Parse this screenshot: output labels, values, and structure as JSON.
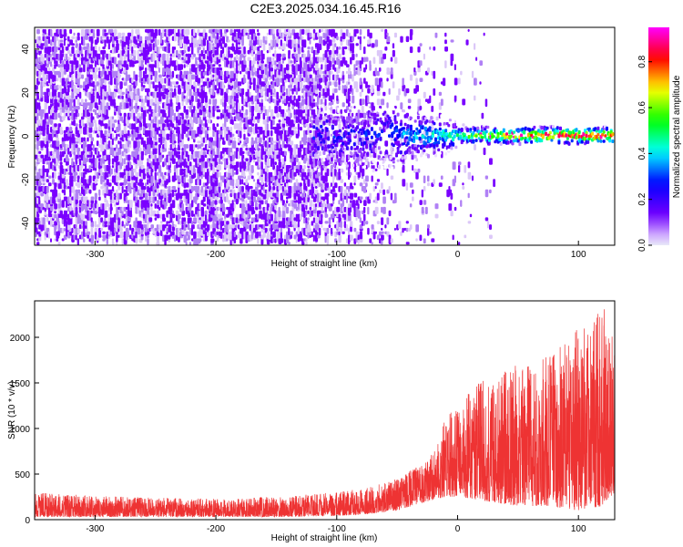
{
  "title": "C2E3.2025.034.16.45.R16",
  "chart_data": [
    {
      "type": "heatmap",
      "title": "C2E3.2025.034.16.45.R16",
      "xlabel": "Height of straight line (km)",
      "ylabel": "Frequency (Hz)",
      "xlim": [
        -350,
        130
      ],
      "ylim": [
        -50,
        50
      ],
      "xticks": [
        -300,
        -200,
        -100,
        0,
        100
      ],
      "yticks": [
        -40,
        -20,
        0,
        20,
        40
      ],
      "colorbar": {
        "label": "Normalized spectral amplitude",
        "range": [
          0.0,
          0.95
        ],
        "ticks": [
          0.0,
          0.2,
          0.4,
          0.6,
          0.8
        ],
        "colormap": [
          "#ffffff",
          "#7000ff",
          "#0000ff",
          "#00ffff",
          "#00ff00",
          "#ffff00",
          "#ff0000",
          "#ff00ff"
        ]
      },
      "description_points": [
        {
          "x": -350,
          "noise_amplitude": 0.12
        },
        {
          "x": -120,
          "noise_amplitude": 0.1
        },
        {
          "x": -100,
          "signal_amplitude": 0.25
        },
        {
          "x": -50,
          "signal_amplitude": 0.3
        },
        {
          "x": 0,
          "signal_amplitude": 0.5
        },
        {
          "x": 50,
          "signal_amplitude": 0.7
        },
        {
          "x": 100,
          "signal_amplitude": 0.75
        },
        {
          "x": 130,
          "signal_amplitude": 0.7
        }
      ]
    },
    {
      "type": "line",
      "xlabel": "Height of straight line (km)",
      "ylabel": "SNR (10 * v/v)",
      "xlim": [
        -350,
        130
      ],
      "ylim": [
        0,
        2400
      ],
      "xticks": [
        -300,
        -200,
        -100,
        0,
        100
      ],
      "yticks": [
        0,
        500,
        1000,
        1500,
        2000
      ],
      "color": "#ee3333",
      "envelope": {
        "x": [
          -350,
          -300,
          -250,
          -200,
          -150,
          -100,
          -75,
          -50,
          -25,
          -10,
          0,
          25,
          50,
          75,
          100,
          120,
          130
        ],
        "upper": [
          300,
          260,
          240,
          230,
          250,
          300,
          350,
          450,
          650,
          1100,
          1300,
          1600,
          1700,
          1800,
          2100,
          2400,
          2000
        ],
        "lower": [
          30,
          30,
          30,
          30,
          30,
          40,
          60,
          100,
          200,
          250,
          250,
          200,
          150,
          150,
          100,
          150,
          300
        ]
      }
    }
  ]
}
